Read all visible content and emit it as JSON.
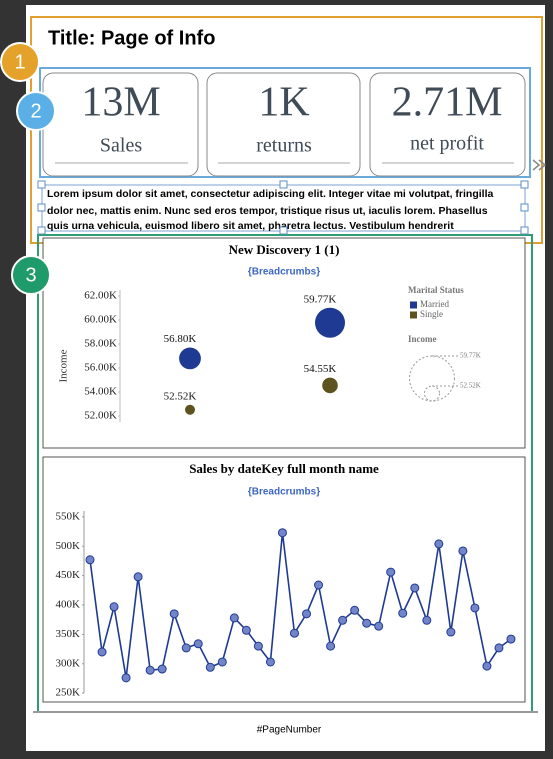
{
  "header": {
    "title": "Title: Page of Info"
  },
  "badges": [
    "1",
    "2",
    "3"
  ],
  "kpis": [
    {
      "value": "13M",
      "label": "Sales"
    },
    {
      "value": "1K",
      "label": "returns"
    },
    {
      "value": "2.71M",
      "label": "net profit"
    }
  ],
  "paragraph": [
    "Lorem ipsum dolor sit amet, consectetur adipiscing elit. Integer vitae mi volutpat, fringilla",
    "dolor nec, mattis enim. Nunc sed eros tempor, tristique risus ut, iaculis lorem. Phasellus",
    "quis urna vehicula, euismod libero sit amet, pharetra lectus. Vestibulum hendrerit"
  ],
  "chart_data": [
    {
      "type": "bubble",
      "title": "New Discovery 1 (1)",
      "subtitle": "{Breadcrumbs}",
      "y_label": "Income",
      "categories": [
        null,
        null
      ],
      "ylim": [
        51500,
        62500
      ],
      "yticks": [
        {
          "value": 52000,
          "label": "52.00K"
        },
        {
          "value": 54000,
          "label": "54.00K"
        },
        {
          "value": 56000,
          "label": "56.00K"
        },
        {
          "value": 58000,
          "label": "58.00K"
        },
        {
          "value": 60000,
          "label": "60.00K"
        },
        {
          "value": 62000,
          "label": "62.00K"
        }
      ],
      "legend_title": "Marital Status",
      "size_legend_title": "Income",
      "size_legend": [
        {
          "value": 59770,
          "label": "59.77K"
        },
        {
          "value": 52520,
          "label": "52.52K"
        }
      ],
      "series": [
        {
          "name": "Married",
          "color": "#1f3a93",
          "values": [
            56800,
            59770
          ],
          "value_labels": [
            "56.80K",
            "59.77K"
          ]
        },
        {
          "name": "Single",
          "color": "#5c5320",
          "values": [
            52520,
            54550
          ],
          "value_labels": [
            "52.52K",
            "54.55K"
          ]
        }
      ]
    },
    {
      "type": "line",
      "title": "Sales by dateKey full month name",
      "subtitle": "{Breadcrumbs}",
      "categories": [
        null,
        null,
        null,
        null,
        null,
        null,
        null,
        null,
        null,
        null,
        null,
        null,
        null,
        null,
        null,
        null,
        null,
        null,
        null,
        null,
        null,
        null,
        null,
        null,
        null,
        null,
        null,
        null,
        null,
        null,
        null,
        null,
        null,
        null,
        null,
        null
      ],
      "values": [
        477000,
        320000,
        397000,
        276000,
        448000,
        289000,
        291000,
        385000,
        327000,
        334000,
        294000,
        303000,
        378000,
        357000,
        330000,
        303000,
        523000,
        352000,
        385000,
        434000,
        330000,
        374000,
        391000,
        369000,
        364000,
        456000,
        386000,
        429000,
        374000,
        504000,
        354000,
        492000,
        395000,
        296000,
        327000,
        342000
      ],
      "color": "#1f3a93",
      "marker_color": "#7385c9",
      "ylim": [
        240000,
        560000
      ],
      "yticks": [
        {
          "value": 250000,
          "label": "250K"
        },
        {
          "value": 300000,
          "label": "300K"
        },
        {
          "value": 350000,
          "label": "350K"
        },
        {
          "value": 400000,
          "label": "400K"
        },
        {
          "value": 450000,
          "label": "450K"
        },
        {
          "value": 500000,
          "label": "500K"
        },
        {
          "value": 550000,
          "label": "550K"
        }
      ]
    }
  ],
  "footer": {
    "page_number": "#PageNumber"
  }
}
